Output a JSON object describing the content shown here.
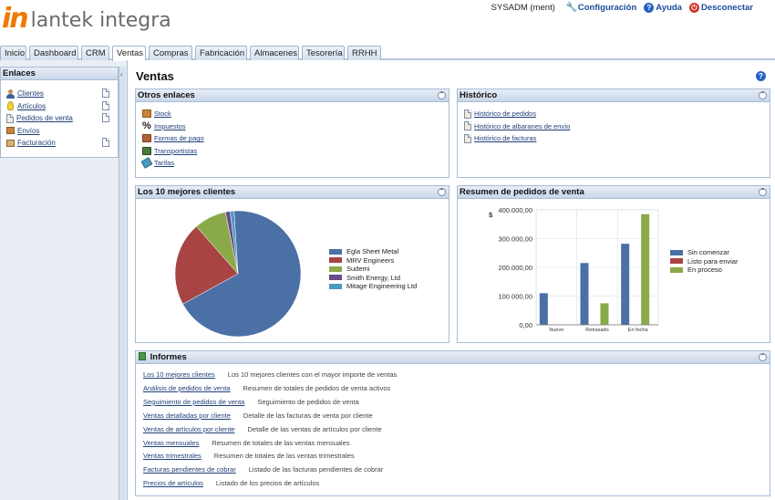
{
  "header": {
    "brand_mark": "in",
    "brand_name": "lantek integra",
    "user": "SYSADM (ment)",
    "config_label": "Configuración",
    "help_label": "Ayuda",
    "logout_label": "Desconectar"
  },
  "tabs": [
    {
      "label": "Inicio",
      "active": false
    },
    {
      "label": "Dashboard",
      "active": false
    },
    {
      "label": "CRM",
      "active": false
    },
    {
      "label": "Ventas",
      "active": true
    },
    {
      "label": "Compras",
      "active": false
    },
    {
      "label": "Fabricación",
      "active": false
    },
    {
      "label": "Almacenes",
      "active": false
    },
    {
      "label": "Tesorería",
      "active": false
    },
    {
      "label": "RRHH",
      "active": false
    }
  ],
  "sidebar": {
    "title": "Enlaces",
    "items": [
      {
        "label": "Clientes",
        "icon": "person-icon",
        "has_doc": true
      },
      {
        "label": "Artículos",
        "icon": "lightbulb-icon",
        "has_doc": true
      },
      {
        "label": "Pedidos de venta",
        "icon": "order-icon",
        "has_doc": true
      },
      {
        "label": "Envíos",
        "icon": "box-icon",
        "has_doc": false
      },
      {
        "label": "Facturación",
        "icon": "invoice-icon",
        "has_doc": true
      }
    ]
  },
  "main": {
    "title": "Ventas"
  },
  "otros_enlaces": {
    "title": "Otros enlaces",
    "items": [
      {
        "label": "Stock",
        "icon": "stock-icon"
      },
      {
        "label": "Impuestos",
        "icon": "percent-icon"
      },
      {
        "label": "Formas de pago",
        "icon": "payment-icon"
      },
      {
        "label": "Transportistas",
        "icon": "truck-icon"
      },
      {
        "label": "Tarifas",
        "icon": "tag-icon"
      }
    ]
  },
  "historico": {
    "title": "Histórico",
    "items": [
      {
        "label": "Histórico de pedidos"
      },
      {
        "label": "Histórico de albaranes de envío"
      },
      {
        "label": "Histórico de facturas"
      }
    ]
  },
  "top_clients": {
    "title": "Los 10 mejores clientes"
  },
  "orders_summary": {
    "title": "Resumen de pedidos de venta"
  },
  "chart_data": [
    {
      "type": "pie",
      "title": "",
      "categories": [
        "Egla Sheet Metal",
        "MRV Engineers",
        "Sudemi",
        "Smith Energy, Ltd",
        "Mitage Engineering Ltd"
      ],
      "values": [
        68.0,
        21.5,
        8.3,
        1.2,
        1.0
      ],
      "colors": [
        "#4a70a6",
        "#a84444",
        "#8aaa4a",
        "#6a4a8a",
        "#4a9ac0"
      ],
      "legend": "right"
    },
    {
      "type": "bar",
      "title": "",
      "ylabel": "$",
      "categories": [
        "Nuevo",
        "Retrasado",
        "En fecha"
      ],
      "series": [
        {
          "name": "Sin comenzar",
          "values": [
            110000,
            215000,
            282000
          ],
          "color": "#4a70a6"
        },
        {
          "name": "Listo para enviar",
          "values": [
            0,
            0,
            0
          ],
          "color": "#a84444"
        },
        {
          "name": "En proceso",
          "values": [
            0,
            75000,
            385000
          ],
          "color": "#8aaa4a"
        }
      ],
      "yticks": [
        "0,00",
        "100.000,00",
        "200.000,00",
        "300.000,00",
        "400.000,00"
      ],
      "ylim": [
        0,
        400000
      ],
      "grid": true,
      "legend": "right"
    }
  ],
  "informes": {
    "title": "Informes",
    "items": [
      {
        "label": "Los 10 mejores clientes",
        "desc": "Los 10 mejores clientes con el mayor importe de ventas"
      },
      {
        "label": "Análisis de pedidos de venta",
        "desc": "Resumen de totales de pedidos de venta activos"
      },
      {
        "label": "Seguimiento de pedidos de venta",
        "desc": "Seguimiento de pedidos de venta"
      },
      {
        "label": "Ventas detalladas por cliente",
        "desc": "Detalle de las facturas de venta por cliente"
      },
      {
        "label": "Ventas de artículos por cliente",
        "desc": "Detalle de las ventas de artículos por cliente"
      },
      {
        "label": "Ventas mensuales",
        "desc": "Resumen de totales de las ventas mensuales"
      },
      {
        "label": "Ventas trimestrales",
        "desc": "Resumen de totales de las ventas trimestrales"
      },
      {
        "label": "Facturas pendientes de cobrar",
        "desc": "Listado de las facturas pendientes de cobrar"
      },
      {
        "label": "Precios de artículos",
        "desc": "Listado de los precios de artículos"
      }
    ]
  }
}
